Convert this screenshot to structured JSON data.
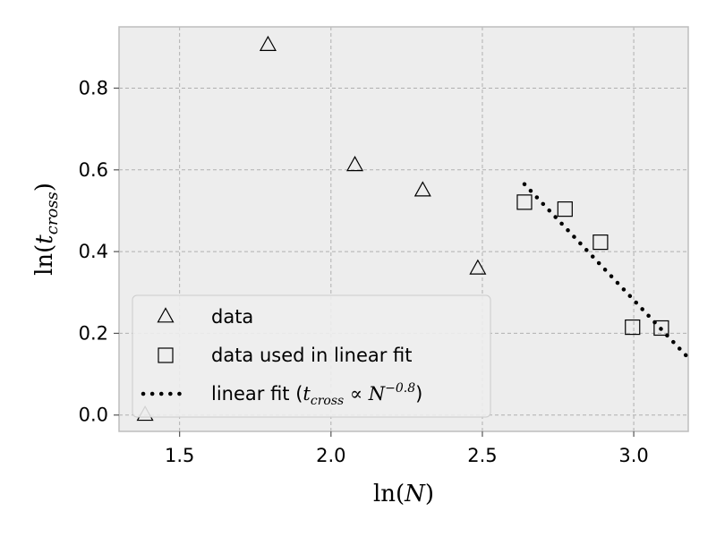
{
  "chart_data": {
    "type": "scatter",
    "xlabel": "ln(N)",
    "ylabel": "ln(t_cross)",
    "xlim": [
      1.3,
      3.18
    ],
    "ylim": [
      -0.04,
      0.95
    ],
    "xticks": [
      1.5,
      2.0,
      2.5,
      3.0
    ],
    "yticks": [
      0.0,
      0.2,
      0.4,
      0.6,
      0.8
    ],
    "xtick_labels": [
      "1.5",
      "2.0",
      "2.5",
      "3.0"
    ],
    "ytick_labels": [
      "0.0",
      "0.2",
      "0.4",
      "0.6",
      "0.8"
    ],
    "grid": true,
    "legend_position": "lower-left",
    "series": [
      {
        "name": "data",
        "marker": "triangle",
        "x": [
          1.386,
          1.792,
          2.079,
          2.303,
          2.485
        ],
        "y": [
          0.0,
          0.905,
          0.611,
          0.549,
          0.358
        ]
      },
      {
        "name": "data used in linear fit",
        "marker": "square",
        "x": [
          2.639,
          2.773,
          2.89,
          2.996,
          3.091
        ],
        "y": [
          0.521,
          0.504,
          0.423,
          0.215,
          0.213
        ]
      },
      {
        "name": "linear fit",
        "style": "dotted-line",
        "x": [
          2.639,
          3.18
        ],
        "y": [
          0.565,
          0.14
        ]
      }
    ],
    "legend": [
      {
        "label_plain": "data",
        "label_rest": "",
        "marker": "triangle"
      },
      {
        "label_plain": "data used in linear fit",
        "label_rest": "",
        "marker": "square"
      },
      {
        "label_plain": "linear fit (",
        "label_math_base": "t",
        "label_math_sub": "cross",
        "label_math_op": " ∝ N",
        "label_math_sup": "−0.8",
        "label_rest": ")",
        "marker": "dotted-line"
      }
    ],
    "colors": {
      "plot_background": "#ededed",
      "grid": "#b0b0b0",
      "spine": "#bdbdbd",
      "marker_edge": "#000000",
      "fit_line": "#000000"
    }
  }
}
